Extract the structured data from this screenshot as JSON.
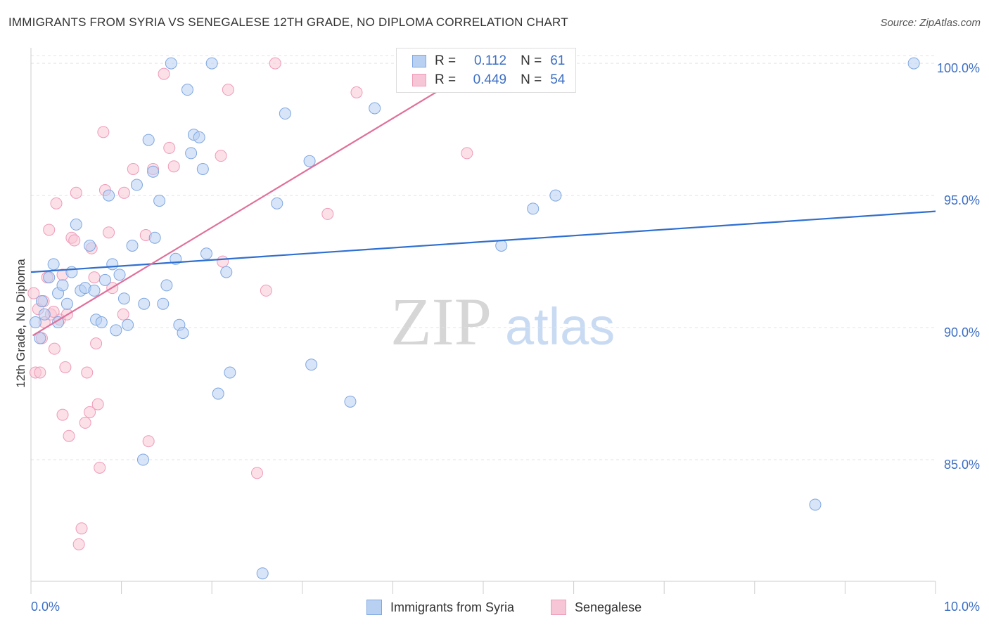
{
  "title": "IMMIGRANTS FROM SYRIA VS SENEGALESE 12TH GRADE, NO DIPLOMA CORRELATION CHART",
  "source": "Source: ZipAtlas.com",
  "watermark": {
    "zip": "ZIP",
    "atlas": "atlas"
  },
  "legend_stats": {
    "r_label": "R =",
    "n_label": "N =",
    "rows": [
      {
        "r": "0.112",
        "n": "61"
      },
      {
        "r": "0.449",
        "n": "54"
      }
    ]
  },
  "colors": {
    "syria_fill": "#b8d0f2",
    "syria_stroke": "#7ea6e0",
    "syria_line": "#2f6fd0",
    "sen_fill": "#f7c6d6",
    "sen_stroke": "#ef9ab8",
    "sen_line": "#e0709a",
    "tick_label": "#3d6fc4",
    "grid": "#e3e3e3"
  },
  "chart_data": {
    "type": "scatter",
    "title": "IMMIGRANTS FROM SYRIA VS SENEGALESE 12TH GRADE, NO DIPLOMA CORRELATION CHART",
    "xlabel": "",
    "ylabel": "12th Grade, No Diploma",
    "xlim": [
      0,
      10
    ],
    "ylim": [
      80.4,
      100.8
    ],
    "x_tick_labels": [
      "0.0%",
      "10.0%"
    ],
    "y_ticks": [
      85,
      90,
      95,
      100
    ],
    "y_tick_labels": [
      "85.0%",
      "90.0%",
      "95.0%",
      "100.0%"
    ],
    "grid": "horizontal dashed",
    "legend_position": "bottom",
    "series": [
      {
        "name": "Immigrants from Syria",
        "r": 0.112,
        "n": 61,
        "trend": [
          [
            0,
            92.1
          ],
          [
            10,
            94.4
          ]
        ],
        "points": [
          [
            0.05,
            90.2
          ],
          [
            0.1,
            89.6
          ],
          [
            0.15,
            90.5
          ],
          [
            0.2,
            91.9
          ],
          [
            0.25,
            92.4
          ],
          [
            0.3,
            91.3
          ],
          [
            0.35,
            91.6
          ],
          [
            0.4,
            90.9
          ],
          [
            0.45,
            92.1
          ],
          [
            0.5,
            93.9
          ],
          [
            0.55,
            91.4
          ],
          [
            0.6,
            91.5
          ],
          [
            0.65,
            93.1
          ],
          [
            0.7,
            91.4
          ],
          [
            0.72,
            90.3
          ],
          [
            0.78,
            90.2
          ],
          [
            0.82,
            91.8
          ],
          [
            0.86,
            95.0
          ],
          [
            0.9,
            92.4
          ],
          [
            0.94,
            89.9
          ],
          [
            0.98,
            92.0
          ],
          [
            1.03,
            91.1
          ],
          [
            1.07,
            90.1
          ],
          [
            1.12,
            93.1
          ],
          [
            1.17,
            95.4
          ],
          [
            1.24,
            85.0
          ],
          [
            1.25,
            90.9
          ],
          [
            1.3,
            97.1
          ],
          [
            1.35,
            95.9
          ],
          [
            1.37,
            93.4
          ],
          [
            1.42,
            94.8
          ],
          [
            1.46,
            90.9
          ],
          [
            1.5,
            91.6
          ],
          [
            1.55,
            100.0
          ],
          [
            1.6,
            92.6
          ],
          [
            1.64,
            90.1
          ],
          [
            1.68,
            89.8
          ],
          [
            1.73,
            99.0
          ],
          [
            1.77,
            96.6
          ],
          [
            1.8,
            97.3
          ],
          [
            1.86,
            97.2
          ],
          [
            1.9,
            96.0
          ],
          [
            1.94,
            92.8
          ],
          [
            2.0,
            100.0
          ],
          [
            2.07,
            87.5
          ],
          [
            2.16,
            92.1
          ],
          [
            2.2,
            88.3
          ],
          [
            2.56,
            80.7
          ],
          [
            2.72,
            94.7
          ],
          [
            2.81,
            98.1
          ],
          [
            3.08,
            96.3
          ],
          [
            3.1,
            88.6
          ],
          [
            3.53,
            87.2
          ],
          [
            3.8,
            98.3
          ],
          [
            5.2,
            93.1
          ],
          [
            5.55,
            94.5
          ],
          [
            5.8,
            95.0
          ],
          [
            8.67,
            83.3
          ],
          [
            9.76,
            100.0
          ],
          [
            0.3,
            90.2
          ],
          [
            0.12,
            91.0
          ]
        ]
      },
      {
        "name": "Senegalese",
        "r": 0.449,
        "n": 54,
        "trend": [
          [
            0.02,
            89.7
          ],
          [
            4.96,
            99.9
          ]
        ],
        "points": [
          [
            0.03,
            91.3
          ],
          [
            0.05,
            88.3
          ],
          [
            0.08,
            90.7
          ],
          [
            0.12,
            89.6
          ],
          [
            0.15,
            90.2
          ],
          [
            0.18,
            91.9
          ],
          [
            0.2,
            93.7
          ],
          [
            0.22,
            90.5
          ],
          [
            0.26,
            89.2
          ],
          [
            0.28,
            94.7
          ],
          [
            0.32,
            90.3
          ],
          [
            0.35,
            92.0
          ],
          [
            0.38,
            88.5
          ],
          [
            0.4,
            90.5
          ],
          [
            0.42,
            85.9
          ],
          [
            0.45,
            93.4
          ],
          [
            0.48,
            93.3
          ],
          [
            0.5,
            95.1
          ],
          [
            0.53,
            81.8
          ],
          [
            0.56,
            82.4
          ],
          [
            0.6,
            86.4
          ],
          [
            0.62,
            88.3
          ],
          [
            0.65,
            86.8
          ],
          [
            0.67,
            93.0
          ],
          [
            0.7,
            91.9
          ],
          [
            0.72,
            89.4
          ],
          [
            0.74,
            87.1
          ],
          [
            0.76,
            84.7
          ],
          [
            0.8,
            97.4
          ],
          [
            0.82,
            95.2
          ],
          [
            0.86,
            93.6
          ],
          [
            0.9,
            91.5
          ],
          [
            1.02,
            90.5
          ],
          [
            1.03,
            95.1
          ],
          [
            1.13,
            96.0
          ],
          [
            1.27,
            93.5
          ],
          [
            1.3,
            85.7
          ],
          [
            1.35,
            96.0
          ],
          [
            1.47,
            99.6
          ],
          [
            1.53,
            96.8
          ],
          [
            1.58,
            96.1
          ],
          [
            2.1,
            96.5
          ],
          [
            2.12,
            92.5
          ],
          [
            2.18,
            99.0
          ],
          [
            2.5,
            84.5
          ],
          [
            2.6,
            91.4
          ],
          [
            2.7,
            100.0
          ],
          [
            3.28,
            94.3
          ],
          [
            3.6,
            98.9
          ],
          [
            4.82,
            96.6
          ],
          [
            0.35,
            86.7
          ],
          [
            0.14,
            91.0
          ],
          [
            0.25,
            90.6
          ],
          [
            0.1,
            88.3
          ]
        ]
      }
    ]
  }
}
